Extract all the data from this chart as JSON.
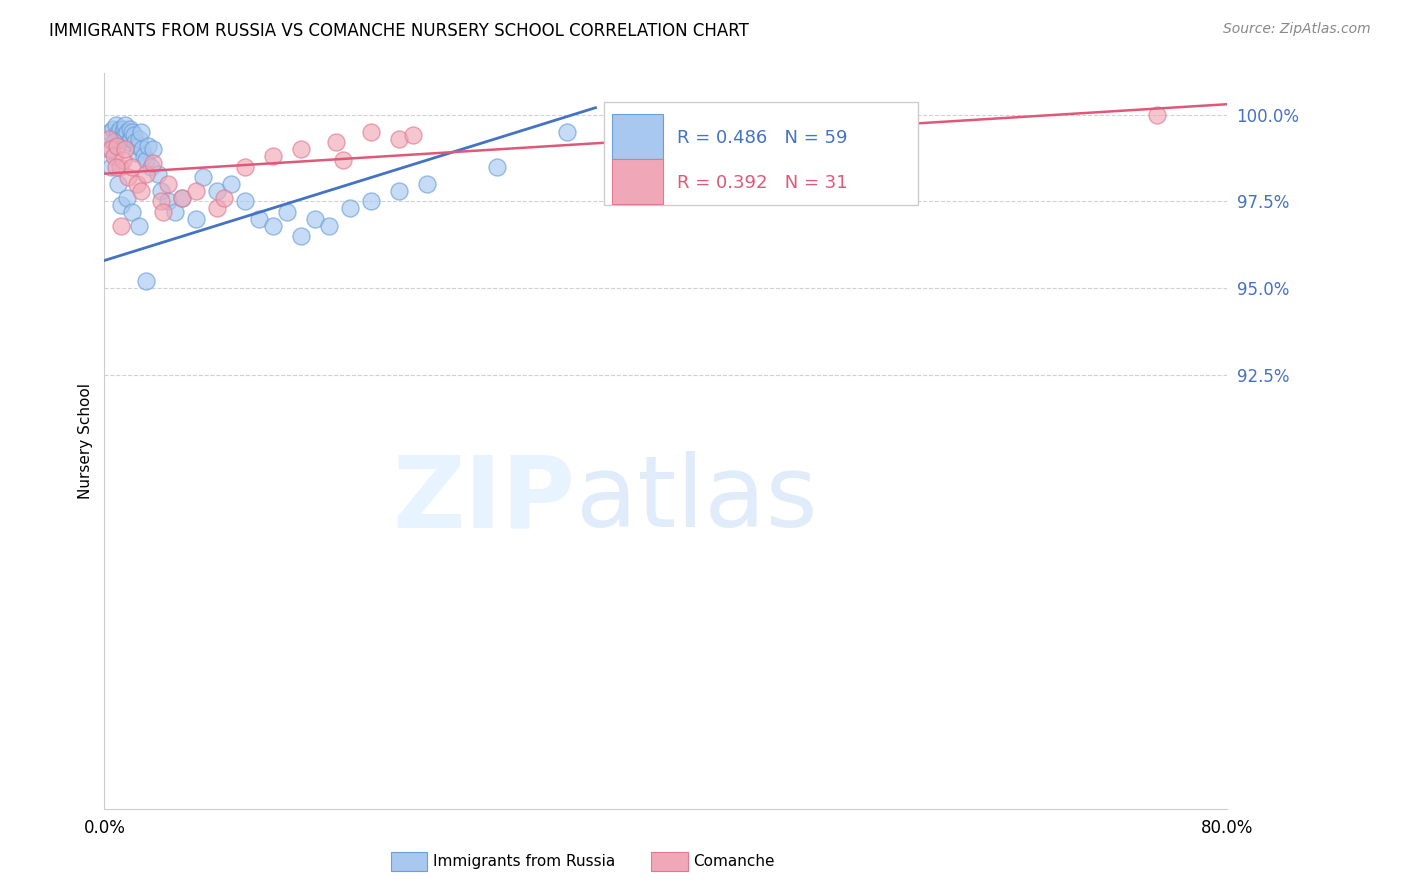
{
  "title": "IMMIGRANTS FROM RUSSIA VS COMANCHE NURSERY SCHOOL CORRELATION CHART",
  "source": "Source: ZipAtlas.com",
  "ylabel": "Nursery School",
  "xlim": [
    0.0,
    80.0
  ],
  "ylim": [
    80.0,
    101.2
  ],
  "yticks": [
    92.5,
    95.0,
    97.5,
    100.0
  ],
  "xticks": [
    0.0,
    10.0,
    20.0,
    30.0,
    40.0,
    50.0,
    60.0,
    70.0,
    80.0
  ],
  "legend_r1": "R = 0.486",
  "legend_n1": "N = 59",
  "legend_r2": "R = 0.392",
  "legend_n2": "N = 31",
  "legend_label1": "Immigrants from Russia",
  "legend_label2": "Comanche",
  "blue_color": "#a8c8f0",
  "pink_color": "#f0a8b8",
  "blue_line_color": "#4472c4",
  "pink_line_color": "#e05878",
  "blue_x": [
    0.4,
    0.6,
    0.8,
    0.9,
    1.0,
    1.1,
    1.2,
    1.3,
    1.4,
    1.5,
    1.5,
    1.6,
    1.7,
    1.8,
    1.9,
    2.0,
    2.1,
    2.2,
    2.3,
    2.4,
    2.5,
    2.6,
    2.7,
    2.8,
    3.0,
    3.1,
    3.3,
    3.5,
    3.8,
    4.0,
    4.5,
    5.0,
    5.5,
    6.5,
    7.0,
    8.0,
    9.0,
    10.0,
    11.0,
    12.0,
    13.0,
    14.0,
    15.0,
    16.0,
    17.5,
    19.0,
    21.0,
    23.0,
    28.0,
    33.0,
    0.3,
    0.5,
    0.7,
    1.0,
    1.2,
    1.6,
    2.0,
    2.5,
    3.0
  ],
  "blue_y": [
    99.5,
    99.6,
    99.7,
    99.4,
    99.5,
    99.6,
    99.3,
    99.5,
    99.6,
    99.7,
    99.4,
    99.5,
    99.2,
    99.6,
    99.3,
    99.5,
    99.4,
    99.2,
    98.9,
    99.1,
    99.3,
    99.5,
    99.0,
    98.8,
    98.7,
    99.1,
    98.5,
    99.0,
    98.3,
    97.8,
    97.5,
    97.2,
    97.6,
    97.0,
    98.2,
    97.8,
    98.0,
    97.5,
    97.0,
    96.8,
    97.2,
    96.5,
    97.0,
    96.8,
    97.3,
    97.5,
    97.8,
    98.0,
    98.5,
    99.5,
    99.0,
    98.5,
    99.2,
    98.0,
    97.4,
    97.6,
    97.2,
    96.8,
    95.2
  ],
  "pink_x": [
    0.3,
    0.5,
    0.7,
    0.9,
    1.1,
    1.3,
    1.5,
    1.7,
    2.0,
    2.3,
    2.6,
    3.0,
    3.5,
    4.0,
    4.5,
    5.5,
    6.5,
    8.0,
    10.0,
    12.0,
    14.0,
    16.5,
    19.0,
    21.0,
    22.0,
    17.0,
    8.5,
    4.2,
    0.8,
    1.2,
    75.0
  ],
  "pink_y": [
    99.3,
    99.0,
    98.8,
    99.1,
    98.5,
    98.7,
    99.0,
    98.2,
    98.5,
    98.0,
    97.8,
    98.3,
    98.6,
    97.5,
    98.0,
    97.6,
    97.8,
    97.3,
    98.5,
    98.8,
    99.0,
    99.2,
    99.5,
    99.3,
    99.4,
    98.7,
    97.6,
    97.2,
    98.5,
    96.8,
    100.0
  ]
}
